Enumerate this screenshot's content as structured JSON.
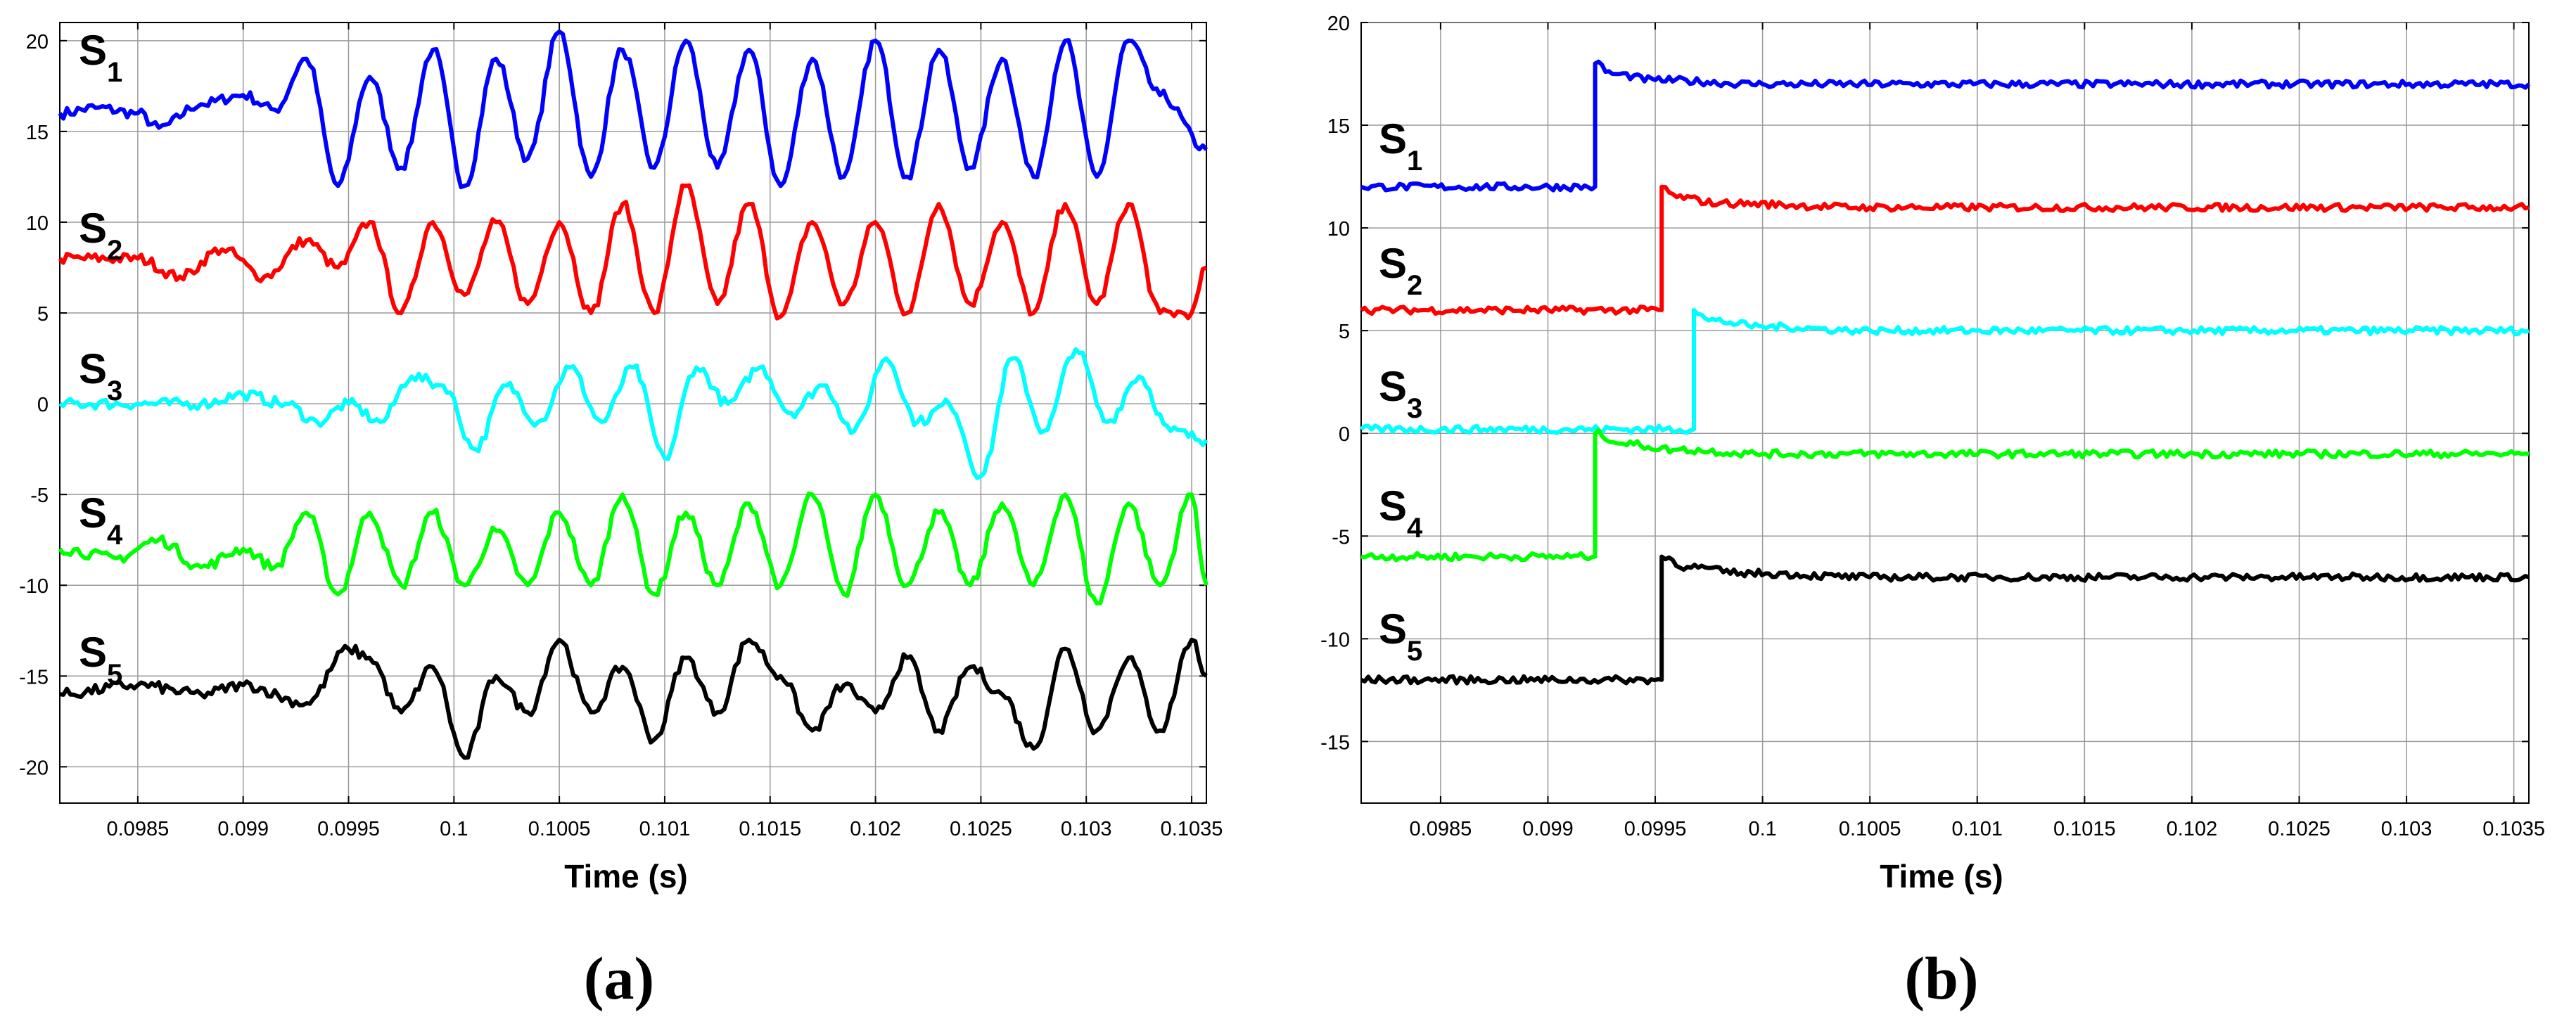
{
  "chart_data": [
    {
      "type": "line",
      "panel_label": "(a)",
      "xlabel": "Time (s)",
      "ylabel": "",
      "xlim": [
        0.09813,
        0.10357
      ],
      "ylim": [
        -22,
        21
      ],
      "xticks": [
        0.0985,
        0.099,
        0.0995,
        0.1,
        0.1005,
        0.101,
        0.1015,
        0.102,
        0.1025,
        0.103,
        0.1035
      ],
      "xtick_labels": [
        "0.0985",
        "0.099",
        "0.0995",
        "0.1",
        "0.1005",
        "0.101",
        "0.1015",
        "0.102",
        "0.1025",
        "0.103",
        "0.1035"
      ],
      "yticks": [
        20,
        15,
        10,
        5,
        0,
        -5,
        -10,
        -15,
        -20
      ],
      "ytick_labels": [
        "20",
        "15",
        "10",
        "5",
        "0",
        "-5",
        "-10",
        "-15",
        "-20"
      ],
      "grid": true,
      "series": [
        {
          "name": "S1",
          "color": "#0000ff",
          "x": [
            0.09813,
            0.0983,
            0.0985,
            0.0986,
            0.0988,
            0.099,
            0.09915,
            0.0993,
            0.09945,
            0.0996,
            0.09975,
            0.0999,
            0.10005,
            0.1002,
            0.10035,
            0.1005,
            0.10065,
            0.1008,
            0.10095,
            0.1011,
            0.10125,
            0.1014,
            0.10155,
            0.1017,
            0.10185,
            0.102,
            0.10215,
            0.1023,
            0.10245,
            0.1026,
            0.10275,
            0.1029,
            0.10305,
            0.1032,
            0.10335,
            0.10357
          ],
          "y": [
            16,
            16.3,
            16,
            15.2,
            16.5,
            17,
            16.2,
            19,
            12,
            18,
            13,
            19.5,
            12,
            19,
            13.5,
            20.5,
            12.5,
            19.5,
            13,
            20,
            13,
            19.5,
            12,
            19,
            12.5,
            20,
            12.5,
            19.5,
            13,
            19,
            12.5,
            20,
            12.5,
            20,
            17,
            14
          ]
        },
        {
          "name": "S2",
          "color": "#ff0000",
          "x": [
            0.09813,
            0.0985,
            0.0987,
            0.0989,
            0.0991,
            0.0993,
            0.09945,
            0.0996,
            0.09975,
            0.0999,
            0.10005,
            0.1002,
            0.10035,
            0.1005,
            0.10065,
            0.1008,
            0.10095,
            0.1011,
            0.10125,
            0.1014,
            0.10155,
            0.1017,
            0.10185,
            0.102,
            0.10215,
            0.1023,
            0.10245,
            0.1026,
            0.10275,
            0.1029,
            0.10305,
            0.1032,
            0.10335,
            0.1035,
            0.10357
          ],
          "y": [
            8,
            8,
            7,
            8.5,
            7,
            9,
            7.5,
            10,
            5,
            10,
            6,
            10,
            5.5,
            10,
            5,
            11,
            5,
            12,
            5.5,
            11,
            4.8,
            10,
            5.5,
            10,
            5,
            11,
            5.5,
            10,
            5,
            11,
            5.5,
            11,
            5,
            5,
            7.5
          ]
        },
        {
          "name": "S3",
          "color": "#00ffff",
          "x": [
            0.09813,
            0.0985,
            0.0988,
            0.099,
            0.0992,
            0.09935,
            0.0995,
            0.09965,
            0.0998,
            0.09995,
            0.1001,
            0.10025,
            0.1004,
            0.10055,
            0.1007,
            0.10085,
            0.101,
            0.10115,
            0.1013,
            0.10145,
            0.1016,
            0.10175,
            0.1019,
            0.10205,
            0.1022,
            0.10235,
            0.1025,
            0.10265,
            0.1028,
            0.10295,
            0.1031,
            0.10325,
            0.1034,
            0.10357
          ],
          "y": [
            0,
            0,
            0,
            0.5,
            0,
            -1,
            0,
            -1,
            1.5,
            1,
            -2.5,
            1,
            -1,
            2,
            -1,
            2,
            -3,
            2,
            0,
            2,
            -0.5,
            1,
            -1.5,
            2.5,
            -1,
            0,
            -4,
            2.5,
            -1.5,
            3,
            -1,
            1.5,
            -1.5,
            -2
          ]
        },
        {
          "name": "S4",
          "color": "#00ff00",
          "x": [
            0.09813,
            0.0984,
            0.0986,
            0.0988,
            0.099,
            0.09915,
            0.0993,
            0.09945,
            0.0996,
            0.09975,
            0.0999,
            0.10005,
            0.1002,
            0.10035,
            0.1005,
            0.10065,
            0.1008,
            0.10095,
            0.1011,
            0.10125,
            0.1014,
            0.10155,
            0.1017,
            0.10185,
            0.102,
            0.10215,
            0.1023,
            0.10245,
            0.1026,
            0.10275,
            0.1029,
            0.10305,
            0.1032,
            0.10335,
            0.1035,
            0.10357
          ],
          "y": [
            -8,
            -8.5,
            -7.5,
            -9,
            -8,
            -9,
            -6,
            -10.5,
            -6,
            -10,
            -6,
            -10,
            -7,
            -10,
            -6,
            -10,
            -5,
            -10.5,
            -6,
            -10,
            -5.5,
            -10,
            -5,
            -10.5,
            -5,
            -10,
            -6,
            -10,
            -5.5,
            -10,
            -5,
            -11,
            -5.5,
            -10,
            -5,
            -10
          ]
        },
        {
          "name": "S5",
          "color": "#000000",
          "x": [
            0.09813,
            0.0985,
            0.0988,
            0.099,
            0.0993,
            0.0995,
            0.0996,
            0.09975,
            0.0999,
            0.10005,
            0.1002,
            0.10035,
            0.1005,
            0.10065,
            0.1008,
            0.10095,
            0.1011,
            0.10125,
            0.1014,
            0.10155,
            0.1017,
            0.10185,
            0.102,
            0.10215,
            0.1023,
            0.10245,
            0.1026,
            0.10275,
            0.1029,
            0.10305,
            0.1032,
            0.10335,
            0.1035,
            0.10357
          ],
          "y": [
            -16,
            -15.5,
            -16,
            -15.5,
            -16.5,
            -13.5,
            -14,
            -17,
            -14.5,
            -19.5,
            -15,
            -17,
            -13,
            -17,
            -14.5,
            -18.5,
            -14,
            -17,
            -13,
            -15,
            -18,
            -15.5,
            -17,
            -14,
            -18,
            -14.5,
            -16,
            -19,
            -13.5,
            -18,
            -14,
            -18,
            -13,
            -15
          ]
        }
      ]
    },
    {
      "type": "line",
      "panel_label": "(b)",
      "xlabel": "Time (s)",
      "ylabel": "",
      "xlim": [
        0.09813,
        0.10357
      ],
      "ylim": [
        -18,
        20
      ],
      "xticks": [
        0.0985,
        0.099,
        0.0995,
        0.1,
        0.1005,
        0.101,
        0.1015,
        0.102,
        0.1025,
        0.103,
        0.1035
      ],
      "xtick_labels": [
        "0.0985",
        "0.099",
        "0.0995",
        "0.1",
        "0.1005",
        "0.101",
        "0.1015",
        "0.102",
        "0.1025",
        "0.103",
        "0.1035"
      ],
      "yticks": [
        20,
        15,
        10,
        5,
        0,
        -5,
        -10,
        -15
      ],
      "ytick_labels": [
        "20",
        "15",
        "10",
        "5",
        "0",
        "-5",
        "-10",
        "-15"
      ],
      "grid": true,
      "series": [
        {
          "name": "S1",
          "color": "#0000ff",
          "x": [
            0.09813,
            0.09922,
            0.09922,
            0.0993,
            0.0995,
            0.1,
            0.10357
          ],
          "y": [
            12,
            12,
            18,
            17.5,
            17.2,
            17,
            17
          ]
        },
        {
          "name": "S2",
          "color": "#ff0000",
          "x": [
            0.09813,
            0.09953,
            0.09953,
            0.0996,
            0.0998,
            0.1005,
            0.10357
          ],
          "y": [
            6,
            6,
            12,
            11.5,
            11.2,
            11,
            11
          ]
        },
        {
          "name": "S3",
          "color": "#00ffff",
          "x": [
            0.09813,
            0.09968,
            0.09968,
            0.09975,
            0.1,
            0.1005,
            0.10357
          ],
          "y": [
            0.2,
            0.2,
            6,
            5.5,
            5.2,
            5,
            5
          ]
        },
        {
          "name": "S4",
          "color": "#00ff00",
          "x": [
            0.09813,
            0.09922,
            0.09922,
            0.09935,
            0.0996,
            0.1,
            0.10357
          ],
          "y": [
            -6,
            -6,
            0,
            -0.5,
            -0.8,
            -1,
            -1
          ]
        },
        {
          "name": "S5",
          "color": "#000000",
          "x": [
            0.09813,
            0.09953,
            0.09953,
            0.09965,
            0.0999,
            0.1005,
            0.10357
          ],
          "y": [
            -12,
            -12,
            -6,
            -6.5,
            -6.8,
            -7,
            -7
          ]
        }
      ]
    }
  ],
  "labels": {
    "a": {
      "S1": [
        "S",
        "1"
      ],
      "S2": [
        "S",
        "2"
      ],
      "S3": [
        "S",
        "3"
      ],
      "S4": [
        "S",
        "4"
      ],
      "S5": [
        "S",
        "5"
      ]
    },
    "b": {
      "S1": [
        "S",
        "1"
      ],
      "S2": [
        "S",
        "2"
      ],
      "S3": [
        "S",
        "3"
      ],
      "S4": [
        "S",
        "4"
      ],
      "S5": [
        "S",
        "5"
      ]
    }
  }
}
